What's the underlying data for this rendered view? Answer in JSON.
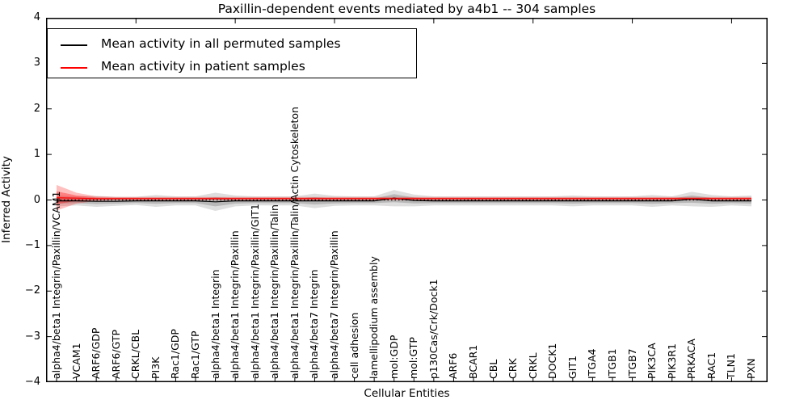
{
  "title": "Paxillin-dependent events mediated by a4b1 -- 304 samples",
  "axes": {
    "xlabel": "Cellular Entities",
    "ylabel": "Inferred Activity",
    "ylim": [
      -4,
      4
    ],
    "y_ticks": [
      {
        "value": 4,
        "label": "4"
      },
      {
        "value": 3,
        "label": "3"
      },
      {
        "value": 2,
        "label": "2"
      },
      {
        "value": 1,
        "label": "1"
      },
      {
        "value": 0,
        "label": "0"
      },
      {
        "value": -1,
        "label": "−1"
      },
      {
        "value": -2,
        "label": "−2"
      },
      {
        "value": -3,
        "label": "−3"
      },
      {
        "value": -4,
        "label": "−4"
      }
    ],
    "zero_line": {
      "style": "dotted",
      "color": "#000000",
      "value": 0
    }
  },
  "chart_data": {
    "type": "line",
    "title": "Paxillin-dependent events mediated by a4b1 -- 304 samples",
    "xlabel": "Cellular Entities",
    "ylabel": "Inferred Activity",
    "ylim": [
      -4,
      4
    ],
    "grid": false,
    "legend_position": "upper left",
    "categories": [
      "alpha4/beta1 Integrin/Paxillin/VCAM1",
      "VCAM1",
      "ARF6/GDP",
      "ARF6/GTP",
      "CRKL/CBL",
      "PI3K",
      "Rac1/GDP",
      "Rac1/GTP",
      "alpha4/beta1 Integrin",
      "alpha4/beta1 Integrin/Paxillin",
      "alpha4/beta1 Integrin/Paxillin/GIT1",
      "alpha4/beta1 Integrin/Paxillin/Talin",
      "alpha4/beta1 Integrin/Paxillin/Talin/Actin Cytoskeleton",
      "alpha4/beta7 Integrin",
      "alpha4/beta7 Integrin/Paxillin",
      "cell adhesion",
      "lamellipodium assembly",
      "mol:GDP",
      "mol:GTP",
      "p130Cas/Crk/Dock1",
      "ARF6",
      "BCAR1",
      "CBL",
      "CRK",
      "CRKL",
      "DOCK1",
      "GIT1",
      "ITGA4",
      "ITGB1",
      "ITGB7",
      "PIK3CA",
      "PIK3R1",
      "PRKACA",
      "RAC1",
      "TLN1",
      "PXN"
    ],
    "series": [
      {
        "name": "Mean activity in all permuted samples",
        "color": "#000000",
        "band_color": "#000000",
        "band_alpha": 0.13,
        "values": [
          -0.02,
          -0.02,
          -0.03,
          -0.03,
          -0.02,
          -0.02,
          -0.02,
          -0.02,
          -0.04,
          -0.02,
          -0.02,
          -0.02,
          -0.02,
          -0.02,
          -0.02,
          -0.02,
          -0.02,
          0.04,
          -0.01,
          -0.02,
          -0.02,
          -0.02,
          -0.02,
          -0.02,
          -0.02,
          -0.02,
          -0.02,
          -0.02,
          -0.02,
          -0.02,
          -0.02,
          -0.02,
          0.02,
          -0.02,
          -0.02,
          -0.02
        ],
        "band": [
          0.12,
          0.1,
          0.12,
          0.1,
          0.09,
          0.13,
          0.1,
          0.1,
          0.2,
          0.12,
          0.1,
          0.1,
          0.1,
          0.16,
          0.11,
          0.1,
          0.1,
          0.18,
          0.13,
          0.1,
          0.1,
          0.1,
          0.1,
          0.1,
          0.1,
          0.1,
          0.12,
          0.1,
          0.1,
          0.1,
          0.13,
          0.1,
          0.16,
          0.13,
          0.1,
          0.12
        ]
      },
      {
        "name": "Mean activity in patient samples",
        "color": "#ff0000",
        "band_color": "#ff0000",
        "band_alpha": 0.25,
        "values": [
          0.05,
          0.04,
          0.03,
          0.03,
          0.03,
          0.03,
          0.03,
          0.03,
          0.03,
          0.03,
          0.03,
          0.03,
          0.03,
          0.03,
          0.03,
          0.03,
          0.03,
          0.03,
          0.03,
          0.03,
          0.03,
          0.03,
          0.03,
          0.03,
          0.03,
          0.03,
          0.03,
          0.03,
          0.03,
          0.03,
          0.03,
          0.03,
          0.03,
          0.03,
          0.03,
          0.03
        ],
        "band": [
          0.28,
          0.12,
          0.05,
          0.035,
          0.035,
          0.035,
          0.035,
          0.035,
          0.035,
          0.035,
          0.035,
          0.035,
          0.035,
          0.035,
          0.035,
          0.035,
          0.035,
          0.035,
          0.035,
          0.035,
          0.035,
          0.035,
          0.035,
          0.035,
          0.035,
          0.035,
          0.035,
          0.035,
          0.035,
          0.035,
          0.035,
          0.035,
          0.035,
          0.035,
          0.035,
          0.035
        ]
      }
    ]
  }
}
